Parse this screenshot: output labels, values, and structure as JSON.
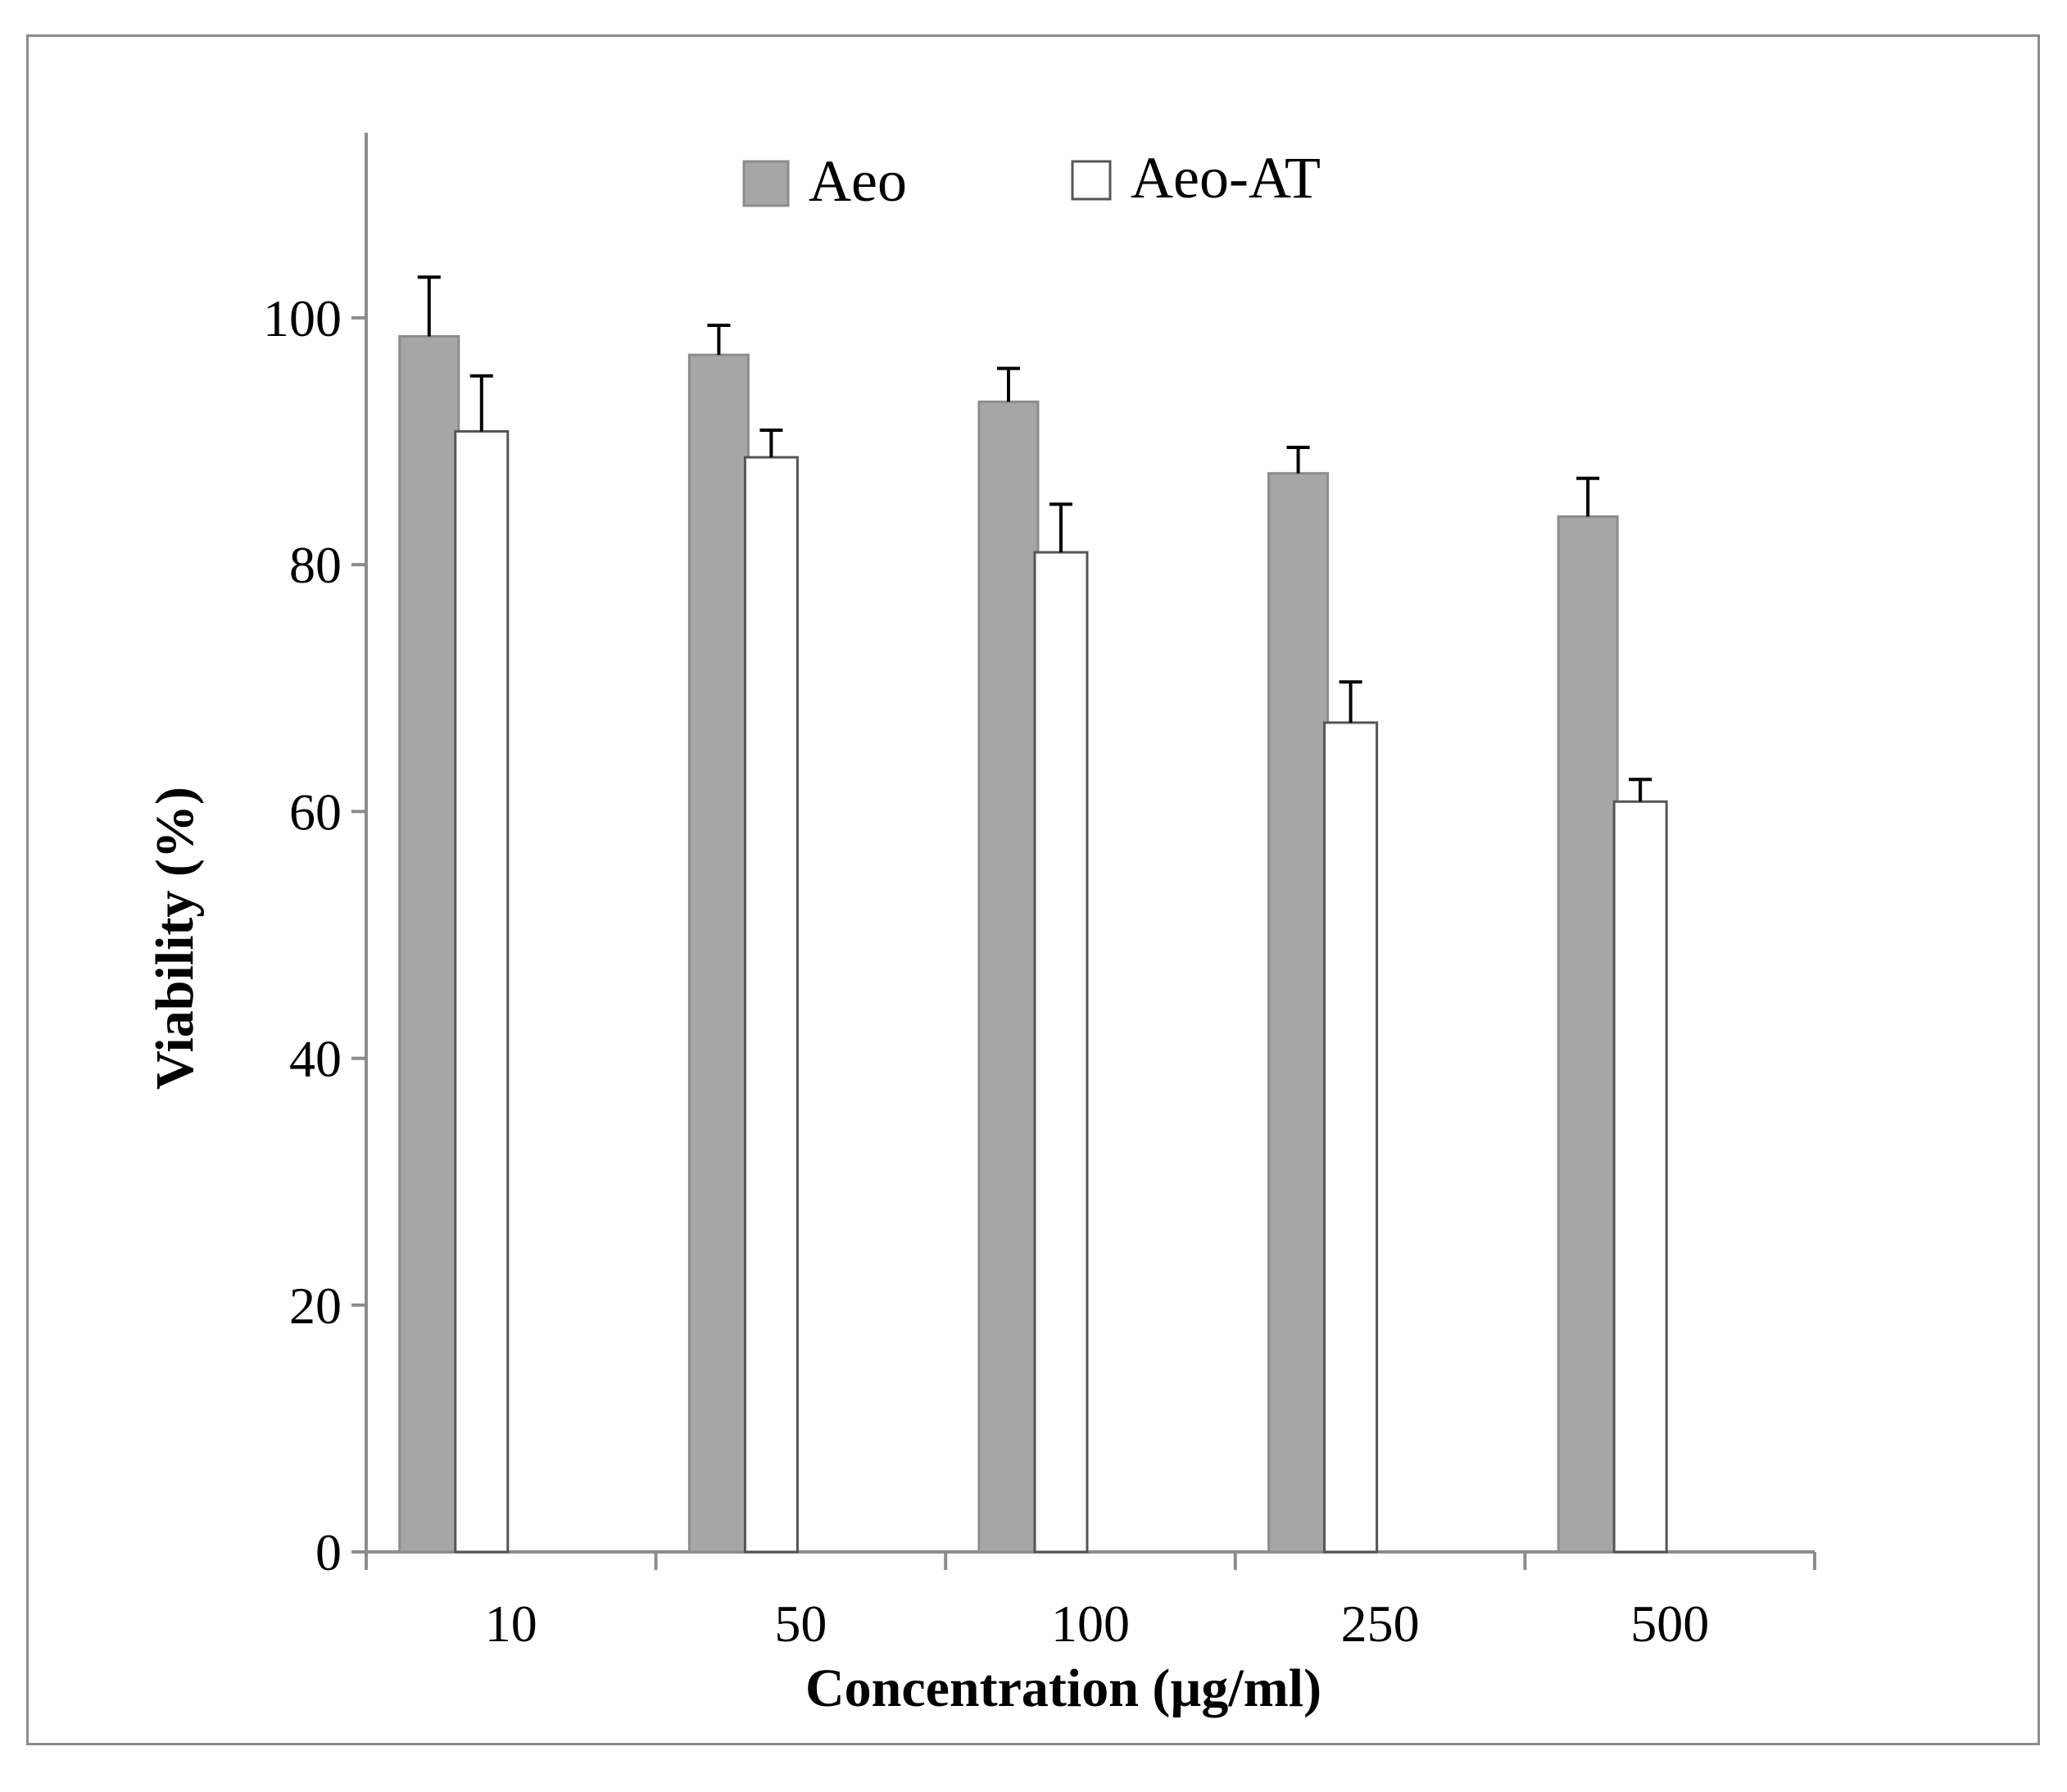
{
  "chart_data": {
    "type": "bar",
    "title": "",
    "xlabel": "Concentration (µg/ml)",
    "ylabel": "Viability (%)",
    "categories": [
      "10",
      "50",
      "100",
      "250",
      "500"
    ],
    "ylim": [
      0,
      115
    ],
    "yticks": [
      0,
      20,
      40,
      60,
      80,
      100
    ],
    "grid": false,
    "legend_position": "top-center",
    "series": [
      {
        "name": "Aeo",
        "color": "#a6a6a6",
        "values": [
          98.5,
          97,
          93.2,
          87.4,
          83.9
        ],
        "errors": [
          4.8,
          2.4,
          2.7,
          2.1,
          3.1
        ]
      },
      {
        "name": "Aeo-AT",
        "color": "#ffffff",
        "values": [
          90.8,
          88.7,
          81,
          67.2,
          60.8
        ],
        "errors": [
          4.5,
          2.2,
          3.9,
          3.3,
          1.8
        ]
      }
    ]
  }
}
